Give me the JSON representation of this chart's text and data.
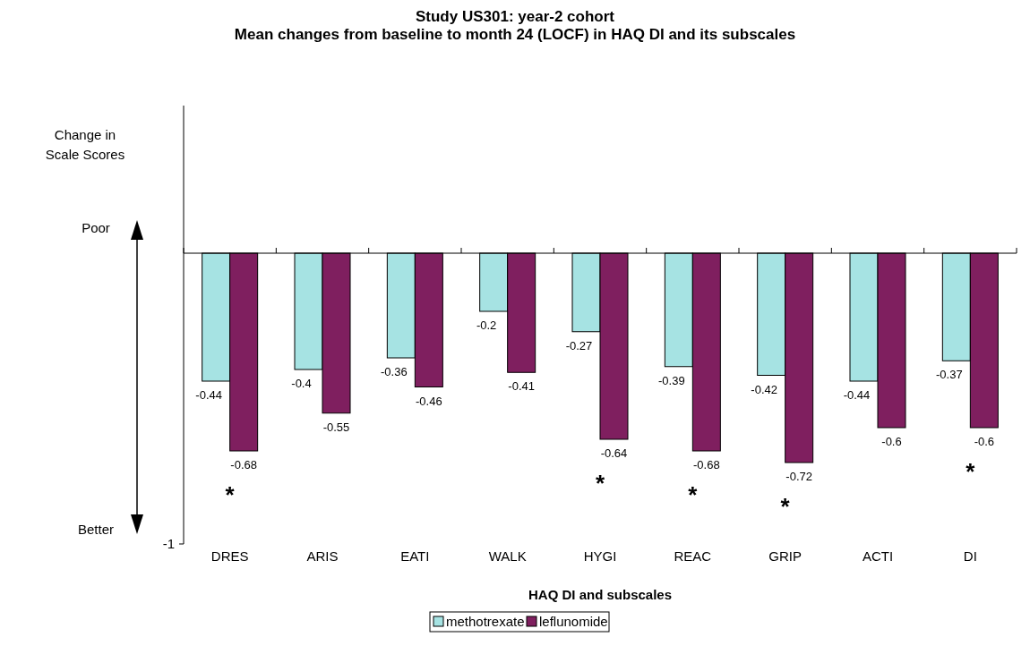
{
  "chart_data": {
    "type": "bar",
    "title": "Study US301:  year-2 cohort\nMean changes from baseline to month 24 (LOCF) in HAQ DI and its subscales",
    "xlabel": "HAQ DI and subscales",
    "categories": [
      "DRES",
      "ARIS",
      "EATI",
      "WALK",
      "HYGI",
      "REAC",
      "GRIP",
      "ACTI",
      "DI"
    ],
    "series": [
      {
        "name": "methotrexate",
        "color": "#a6e3e3",
        "values": [
          -0.44,
          -0.4,
          -0.36,
          -0.2,
          -0.27,
          -0.39,
          -0.42,
          -0.44,
          -0.37
        ]
      },
      {
        "name": "leflunomide",
        "color": "#7f1f5f",
        "values": [
          -0.68,
          -0.55,
          -0.46,
          -0.41,
          -0.64,
          -0.68,
          -0.72,
          -0.6,
          -0.6
        ]
      }
    ],
    "data_labels": true,
    "legend": "bottom",
    "annotations": [
      "Poor",
      "Better",
      "-1",
      "Change in Scale Scores",
      {
        "text": "*",
        "x": "DRES",
        "y": -0.68
      },
      {
        "text": "*",
        "x": "HYGI",
        "y": -0.64
      },
      {
        "text": "*",
        "x": "REAC",
        "y": -0.68
      },
      {
        "text": "*",
        "x": "GRIP",
        "y": -0.72
      },
      {
        "text": "*",
        "x": "DI",
        "y": -0.6
      }
    ]
  }
}
